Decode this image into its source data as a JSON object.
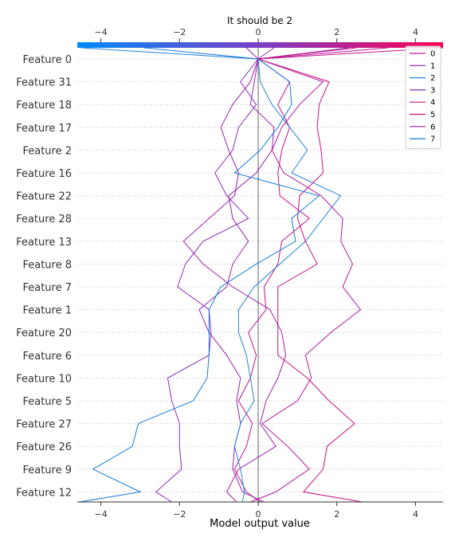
{
  "chart_data": {
    "type": "line",
    "title": "It should be 2",
    "xlabel": "Model output value",
    "ylabel": "",
    "xlim": [
      -4.6,
      4.7
    ],
    "xticks": [
      -4,
      -2,
      0,
      2,
      4
    ],
    "xtick_labels": [
      "−4",
      "−2",
      "0",
      "2",
      "4"
    ],
    "top_xtick_labels": [
      "−4",
      "−2",
      "0",
      "2",
      "4"
    ],
    "baseline": 0.0,
    "features": [
      "Feature 0",
      "Feature 31",
      "Feature 18",
      "Feature 17",
      "Feature 2",
      "Feature 16",
      "Feature 22",
      "Feature 28",
      "Feature 13",
      "Feature 8",
      "Feature 7",
      "Feature 1",
      "Feature 20",
      "Feature 6",
      "Feature 10",
      "Feature 5",
      "Feature 27",
      "Feature 26",
      "Feature 9",
      "Feature 12"
    ],
    "legend_position": "upper right",
    "grid": "dotted horizontal",
    "colorbar": {
      "from": "#008bfb",
      "mid": "#7a3fc4",
      "to": "#ff0052"
    },
    "series": [
      {
        "name": "0",
        "color": "#c2138c",
        "start": 0.0,
        "final": 4.7,
        "values": [
          0.0,
          0.8,
          0.5,
          0.8,
          0.6,
          0.5,
          0.55,
          1.3,
          0.6,
          0.5,
          0.15,
          0.2,
          -0.25,
          -0.05,
          -0.2,
          -0.5,
          -0.15,
          -0.3,
          -0.6,
          -0.3,
          0.05
        ]
      },
      {
        "name": "1",
        "color": "#9421b2",
        "start": 0.0,
        "final": 2.3,
        "values": [
          0.0,
          -0.1,
          -0.2,
          0.4,
          0.35,
          -0.05,
          -0.75,
          -0.65,
          -0.25,
          -0.65,
          -0.8,
          -1.5,
          -1.25,
          -0.8,
          -0.45,
          -0.55,
          -0.45,
          -0.6,
          -0.65,
          -0.4,
          0.15
        ]
      },
      {
        "name": "2",
        "color": "#1f84e0",
        "start": 0.0,
        "final": -4.5,
        "values": [
          0.0,
          0.05,
          0.35,
          0.8,
          1.25,
          0.85,
          2.1,
          1.65,
          1.2,
          0.55,
          -0.1,
          -0.5,
          -0.5,
          -0.3,
          -0.2,
          -0.1,
          -0.45,
          -0.6,
          -0.45,
          -0.35,
          -0.4
        ]
      },
      {
        "name": "3",
        "color": "#8a2db8",
        "start": 0.0,
        "final": 0.4,
        "values": [
          0.0,
          -0.45,
          -0.05,
          -0.5,
          -0.65,
          -1.1,
          -0.8,
          -0.25,
          -1.4,
          -1.85,
          -2.05,
          -1.25,
          -1.2,
          -1.25,
          -2.3,
          -2.2,
          -2.0,
          -2.0,
          -1.95,
          -2.6,
          -2.2
        ]
      },
      {
        "name": "4",
        "color": "#b5169d",
        "start": 0.0,
        "final": 3.3,
        "values": [
          0.0,
          1.65,
          1.05,
          0.6,
          0.35,
          0.65,
          1.6,
          2.15,
          2.1,
          2.4,
          2.15,
          2.6,
          1.85,
          1.2,
          1.35,
          1.0,
          0.1,
          0.75,
          1.3,
          0.45,
          -0.2
        ]
      },
      {
        "name": "5",
        "color": "#ca1180",
        "start": 0.0,
        "final": 2.5,
        "values": [
          0.0,
          1.8,
          1.55,
          1.5,
          1.6,
          1.65,
          1.05,
          1.0,
          1.2,
          1.5,
          0.5,
          0.5,
          0.5,
          0.5,
          1.25,
          1.8,
          2.45,
          1.75,
          1.65,
          1.15,
          2.65
        ]
      },
      {
        "name": "6",
        "color": "#a31fa8",
        "start": 0.0,
        "final": -0.3,
        "values": [
          0.0,
          -0.2,
          -0.65,
          -0.95,
          -0.75,
          -0.5,
          -0.6,
          -1.25,
          -1.9,
          -1.4,
          -0.65,
          0.3,
          0.6,
          0.7,
          0.5,
          0.2,
          0.05,
          0.45,
          -0.5,
          -0.8,
          -0.55
        ]
      },
      {
        "name": "7",
        "color": "#1479d9",
        "start": 0.0,
        "final": -2.9,
        "values": [
          0.0,
          0.8,
          0.85,
          0.5,
          0.05,
          -0.6,
          1.55,
          0.85,
          0.95,
          -0.05,
          -0.95,
          -1.25,
          -1.25,
          -1.25,
          -1.3,
          -1.65,
          -3.05,
          -3.2,
          -4.2,
          -3.0,
          -4.55
        ]
      }
    ]
  }
}
